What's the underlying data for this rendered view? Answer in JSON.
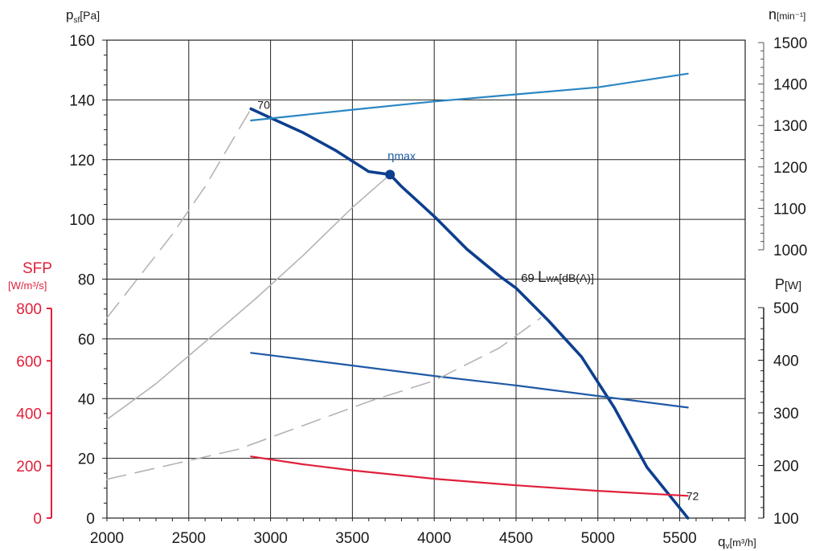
{
  "chart_data": {
    "type": "line",
    "axes": {
      "x": {
        "label": "q",
        "sub": "v",
        "unit": "[m³/h]",
        "min": 2000,
        "max": 5900,
        "ticks": [
          "2000",
          "2500",
          "3000",
          "3500",
          "4000",
          "4500",
          "5000",
          "5500"
        ]
      },
      "y_pressure": {
        "label": "p",
        "sub": "sf",
        "unit": "[Pa]",
        "min": 0,
        "max": 160,
        "ticks": [
          "0",
          "20",
          "40",
          "60",
          "80",
          "100",
          "120",
          "140",
          "160"
        ]
      },
      "y_sfp": {
        "label": "SFP",
        "unit": "[W/m³/s]",
        "min": 0,
        "max": 800,
        "color": "#e0203a",
        "ticks": [
          "0",
          "200",
          "400",
          "600",
          "800"
        ]
      },
      "y_speed": {
        "label": "n",
        "unit": "[min⁻¹]",
        "min": 1000,
        "max": 1500,
        "ticks": [
          "1000",
          "1100",
          "1200",
          "1300",
          "1400",
          "1500"
        ]
      },
      "y_power": {
        "label": "P",
        "unit": "[W]",
        "min": 100,
        "max": 500,
        "ticks": [
          "100",
          "200",
          "300",
          "400",
          "500"
        ]
      }
    },
    "grid": true,
    "series": [
      {
        "id": "pressure",
        "axis": "y_pressure",
        "color": "#0d3f8f",
        "points": [
          [
            2880,
            137
          ],
          [
            3000,
            134
          ],
          [
            3200,
            129
          ],
          [
            3400,
            123
          ],
          [
            3600,
            116
          ],
          [
            3730,
            115
          ],
          [
            3800,
            111
          ],
          [
            4000,
            101
          ],
          [
            4200,
            90
          ],
          [
            4400,
            81
          ],
          [
            4500,
            77
          ],
          [
            4700,
            66
          ],
          [
            4900,
            54
          ],
          [
            5100,
            37
          ],
          [
            5300,
            17
          ],
          [
            5550,
            0
          ]
        ]
      },
      {
        "id": "speed",
        "axis": "y_speed",
        "color": "#2a86c4",
        "points": [
          [
            2880,
            1312
          ],
          [
            3500,
            1338
          ],
          [
            4000,
            1358
          ],
          [
            4500,
            1375
          ],
          [
            5000,
            1392
          ],
          [
            5550,
            1425
          ]
        ]
      },
      {
        "id": "power",
        "axis": "y_power",
        "color": "#1f5aa6",
        "points": [
          [
            2880,
            414
          ],
          [
            3500,
            390
          ],
          [
            4000,
            370
          ],
          [
            4500,
            352
          ],
          [
            5000,
            332
          ],
          [
            5550,
            310
          ]
        ]
      },
      {
        "id": "sfp",
        "axis": "y_sfp",
        "color": "#e0203a",
        "points": [
          [
            2880,
            235
          ],
          [
            3200,
            205
          ],
          [
            3500,
            182
          ],
          [
            4000,
            150
          ],
          [
            4500,
            125
          ],
          [
            5000,
            104
          ],
          [
            5550,
            85
          ]
        ]
      },
      {
        "id": "parabola-1",
        "axis": "y_pressure",
        "color": "#b4b4b4",
        "dash": "24,12",
        "points": [
          [
            2000,
            67
          ],
          [
            2200,
            81
          ],
          [
            2400,
            95
          ],
          [
            2600,
            111
          ],
          [
            2880,
            137
          ]
        ]
      },
      {
        "id": "parabola-2",
        "axis": "y_pressure",
        "color": "#b4b4b4",
        "points": [
          [
            2000,
            33
          ],
          [
            2300,
            45
          ],
          [
            2600,
            59
          ],
          [
            2900,
            73
          ],
          [
            3200,
            88
          ],
          [
            3500,
            104
          ],
          [
            3730,
            115
          ]
        ]
      },
      {
        "id": "parabola-3",
        "axis": "y_pressure",
        "color": "#b4b4b4",
        "dash": "24,12",
        "points": [
          [
            2000,
            13
          ],
          [
            2400,
            18
          ],
          [
            2800,
            23
          ],
          [
            3200,
            31
          ],
          [
            3600,
            39
          ],
          [
            4000,
            46
          ],
          [
            4400,
            57
          ],
          [
            4650,
            67
          ]
        ]
      }
    ],
    "marker": {
      "x": 3730,
      "y": 115,
      "color": "#0d3f8f"
    },
    "annotations": [
      {
        "text": "70",
        "x": 2920,
        "y": 137
      },
      {
        "text": "η",
        "x": 3715,
        "y": 120,
        "tail": "max"
      },
      {
        "text": "69",
        "x": 4530,
        "y": 79,
        "lw": "L",
        "lw_sub": "WA",
        "lw_unit": "[dB(A)]"
      },
      {
        "text": "72",
        "x": 5540,
        "y": 6
      }
    ]
  }
}
